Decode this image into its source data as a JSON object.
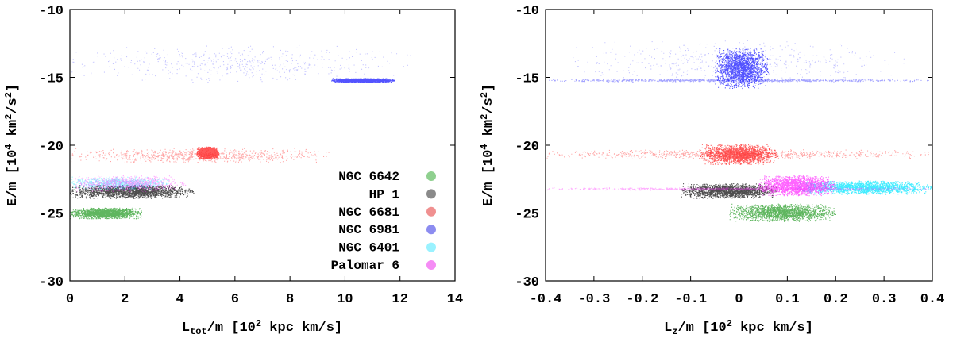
{
  "chart_data": [
    {
      "type": "scatter",
      "xlabel": {
        "base": "L",
        "sub": "tot",
        "rest": "/m [10",
        "sup": "2",
        "end": " kpc km/s]"
      },
      "ylabel": {
        "pre": "E/m [10",
        "sup1": "4",
        "mid": " km",
        "sup2": "2",
        "mid2": "/s",
        "sup3": "2",
        "end": "]"
      },
      "xlim": [
        0,
        14
      ],
      "ylim": [
        -30,
        -10
      ],
      "xticks": [
        "0",
        "2",
        "4",
        "6",
        "8",
        "10",
        "12",
        "14"
      ],
      "yticks": [
        "-10",
        "-15",
        "-20",
        "-25",
        "-30"
      ],
      "legend_position": "bottom-right",
      "series": [
        {
          "name": "NGC 6642",
          "color": "#2a9e2a",
          "legend_color": "#8fd08f",
          "clouds": [
            {
              "x": [
                0,
                2.6
              ],
              "y": [
                -25.4,
                -24.6
              ],
              "density": "high"
            }
          ]
        },
        {
          "name": "HP 1",
          "color": "#111111",
          "legend_color": "#8a8a8a",
          "clouds": [
            {
              "x": [
                0,
                4.5
              ],
              "y": [
                -23.9,
                -22.9
              ],
              "density": "high"
            }
          ]
        },
        {
          "name": "NGC 6681",
          "color": "#ff2020",
          "legend_color": "#f09090",
          "clouds": [
            {
              "x": [
                0,
                9.5
              ],
              "y": [
                -21.3,
                -20.2
              ],
              "density": "medium"
            },
            {
              "x": [
                4.6,
                5.4
              ],
              "y": [
                -21.0,
                -20.1
              ],
              "density": "high"
            }
          ]
        },
        {
          "name": "NGC 6981",
          "color": "#1a1aff",
          "legend_color": "#8c8cf0",
          "clouds": [
            {
              "x": [
                0,
                12.5
              ],
              "y": [
                -15.4,
                -12.6
              ],
              "density": "low"
            },
            {
              "x": [
                9.5,
                11.8
              ],
              "y": [
                -15.35,
                -15.05
              ],
              "density": "high"
            }
          ]
        },
        {
          "name": "NGC 6401",
          "color": "#00e5ff",
          "legend_color": "#9af2ff",
          "clouds": [
            {
              "x": [
                0,
                3.6
              ],
              "y": [
                -23.3,
                -22.3
              ],
              "density": "medium"
            }
          ]
        },
        {
          "name": "Palomar 6",
          "color": "#ff30ff",
          "legend_color": "#f58cf5",
          "clouds": [
            {
              "x": [
                0,
                4.2
              ],
              "y": [
                -23.4,
                -22.2
              ],
              "density": "medium"
            }
          ]
        }
      ]
    },
    {
      "type": "scatter",
      "xlabel": {
        "base": "L",
        "sub": "z",
        "rest": "/m [10",
        "sup": "2",
        "end": " kpc km/s]"
      },
      "ylabel": {
        "pre": "E/m [10",
        "sup1": "4",
        "mid": " km",
        "sup2": "2",
        "mid2": "/s",
        "sup3": "2",
        "end": "]"
      },
      "xlim": [
        -0.4,
        0.4
      ],
      "ylim": [
        -30,
        -10
      ],
      "xticks": [
        "-0.4",
        "-0.3",
        "-0.2",
        "-0.1",
        "0",
        "0.1",
        "0.2",
        "0.3",
        "0.4"
      ],
      "yticks": [
        "-10",
        "-15",
        "-20",
        "-25",
        "-30"
      ],
      "series": [
        {
          "name": "NGC 6981",
          "color": "#1a1aff",
          "clouds": [
            {
              "x": [
                -0.4,
                0.4
              ],
              "y": [
                -15.3,
                -15.1
              ],
              "density": "medium"
            },
            {
              "x": [
                -0.05,
                0.06
              ],
              "y": [
                -15.8,
                -12.8
              ],
              "density": "high"
            },
            {
              "x": [
                -0.35,
                0.35
              ],
              "y": [
                -15.4,
                -12.2
              ],
              "density": "low"
            }
          ]
        },
        {
          "name": "NGC 6681",
          "color": "#ff2020",
          "clouds": [
            {
              "x": [
                -0.4,
                0.4
              ],
              "y": [
                -21.0,
                -20.3
              ],
              "density": "medium"
            },
            {
              "x": [
                -0.08,
                0.08
              ],
              "y": [
                -21.4,
                -19.9
              ],
              "density": "high"
            }
          ]
        },
        {
          "name": "NGC 6642",
          "color": "#2a9e2a",
          "clouds": [
            {
              "x": [
                -0.02,
                0.2
              ],
              "y": [
                -25.6,
                -24.3
              ],
              "density": "high"
            }
          ]
        },
        {
          "name": "HP 1",
          "color": "#111111",
          "clouds": [
            {
              "x": [
                -0.12,
                0.08
              ],
              "y": [
                -23.9,
                -22.8
              ],
              "density": "high"
            }
          ]
        },
        {
          "name": "NGC 6401",
          "color": "#00e5ff",
          "clouds": [
            {
              "x": [
                0.12,
                0.4
              ],
              "y": [
                -23.6,
                -22.6
              ],
              "density": "high"
            }
          ]
        },
        {
          "name": "Palomar 6",
          "color": "#ff30ff",
          "clouds": [
            {
              "x": [
                -0.4,
                0.4
              ],
              "y": [
                -23.3,
                -23.1
              ],
              "density": "medium"
            },
            {
              "x": [
                0.04,
                0.2
              ],
              "y": [
                -23.7,
                -22.2
              ],
              "density": "high"
            }
          ]
        }
      ]
    }
  ]
}
